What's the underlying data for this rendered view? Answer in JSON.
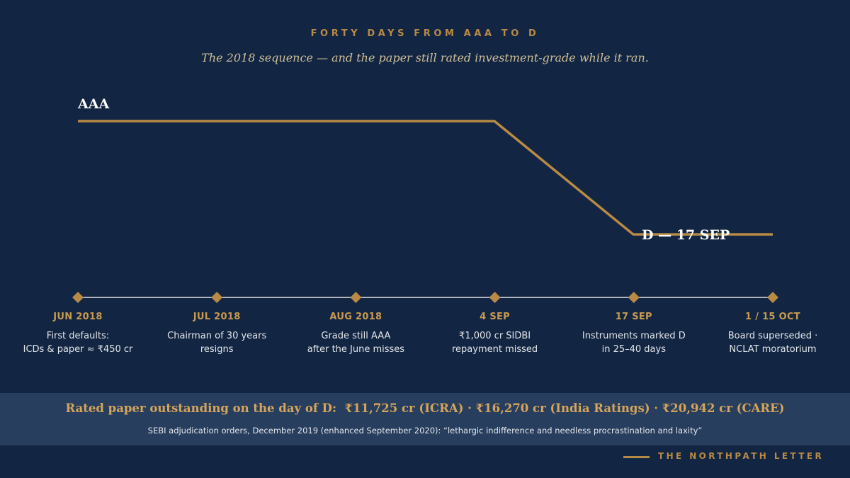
{
  "header": {
    "kicker": "FORTY DAYS FROM AAA TO D",
    "subtitle": "The 2018 sequence — and the paper still rated investment-grade while it ran."
  },
  "rating_path": {
    "start_label": "AAA",
    "end_label": "D — 17 SEP",
    "from_rating": "AAA",
    "to_rating": "D",
    "drop_starts_at_marker": 3,
    "drop_ends_at_marker": 4
  },
  "timeline": {
    "markers": [
      {
        "date": "JUN 2018",
        "lines": [
          "First defaults:",
          "ICDs & paper ≈ ₹450 cr"
        ]
      },
      {
        "date": "JUL 2018",
        "lines": [
          "Chairman of 30 years",
          "resigns"
        ]
      },
      {
        "date": "AUG 2018",
        "lines": [
          "Grade still AAA",
          "after the June misses"
        ]
      },
      {
        "date": "4 SEP",
        "lines": [
          "₹1,000 cr SIDBI",
          "repayment missed"
        ]
      },
      {
        "date": "17 SEP",
        "lines": [
          "Instruments marked D",
          "in 25–40 days"
        ]
      },
      {
        "date": "1 / 15 OCT",
        "lines": [
          "Board superseded ·",
          "NCLAT moratorium"
        ]
      }
    ]
  },
  "footer_band": {
    "headline": "Rated paper outstanding on the day of D:  ₹11,725 cr (ICRA) · ₹16,270 cr (India Ratings) · ₹20,942 cr (CARE)",
    "source": "SEBI adjudication orders, December 2019 (enhanced September 2020): “lethargic indifference and needless procrastination and laxity”"
  },
  "brand": {
    "name": "THE NORTHPATH LETTER"
  },
  "colors": {
    "background": "#122542",
    "accent_gold": "#b88a45",
    "band": "#273e5e",
    "text_light": "#e3e6ea"
  }
}
